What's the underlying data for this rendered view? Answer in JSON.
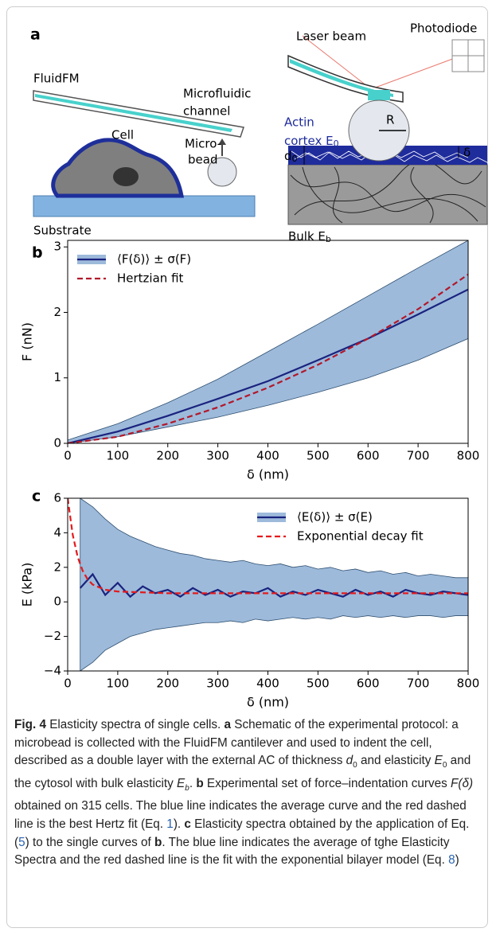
{
  "panel_a": {
    "label": "a",
    "fluidfm": "FluidFM",
    "microfluidic": "Microfluidic",
    "channel": "channel",
    "cell": "Cell",
    "micro": "Micro-",
    "bead": "bead",
    "substrate": "Substrate",
    "laser": "Laser beam",
    "photodiode": "Photodiode",
    "actin": "Actin",
    "cortex": "cortex E",
    "cortex_sub": "0",
    "r": "R",
    "d": "d",
    "d_sub": "0",
    "delta": "δ",
    "bulk": "Bulk E",
    "bulk_sub": "b"
  },
  "chart_data": [
    {
      "type": "line",
      "panel": "b",
      "xlabel": "δ (nm)",
      "ylabel": "F (nN)",
      "xlim": [
        0,
        800
      ],
      "ylim": [
        0,
        3.1
      ],
      "xticks": [
        0,
        100,
        200,
        300,
        400,
        500,
        600,
        700,
        800
      ],
      "yticks": [
        0,
        1,
        2,
        3
      ],
      "legend": "upper left",
      "series": [
        {
          "name": "⟨F(δ)⟩ ± σ(F)",
          "color": "#1a237e",
          "band_color": "#9dbadb",
          "x": [
            0,
            100,
            200,
            300,
            400,
            500,
            600,
            700,
            800
          ],
          "values": [
            0,
            0.18,
            0.42,
            0.68,
            0.95,
            1.27,
            1.6,
            1.97,
            2.35
          ],
          "lower": [
            0,
            0.1,
            0.25,
            0.4,
            0.58,
            0.78,
            1.0,
            1.27,
            1.6
          ],
          "upper": [
            0.05,
            0.3,
            0.62,
            0.98,
            1.4,
            1.82,
            2.25,
            2.68,
            3.1
          ]
        },
        {
          "name": "Hertzian fit",
          "color": "#b2182b",
          "dashed": true,
          "x": [
            0,
            100,
            200,
            300,
            400,
            500,
            600,
            700,
            800
          ],
          "values": [
            0,
            0.1,
            0.3,
            0.55,
            0.85,
            1.2,
            1.6,
            2.05,
            2.58
          ]
        }
      ]
    },
    {
      "type": "line",
      "panel": "c",
      "xlabel": "δ (nm)",
      "ylabel": "E (kPa)",
      "xlim": [
        0,
        800
      ],
      "ylim": [
        -4,
        6
      ],
      "xticks": [
        0,
        100,
        200,
        300,
        400,
        500,
        600,
        700,
        800
      ],
      "yticks": [
        {
          "value": -4,
          "label": "−4"
        },
        {
          "value": -2,
          "label": "−2"
        },
        0,
        2,
        4,
        6
      ],
      "legend": "upper right",
      "series": [
        {
          "name": "⟨E(δ)⟩ ± σ(E)",
          "color": "#1a237e",
          "band_color": "#9dbadb",
          "x": [
            25,
            50,
            75,
            100,
            125,
            150,
            175,
            200,
            225,
            250,
            275,
            300,
            325,
            350,
            375,
            400,
            425,
            450,
            475,
            500,
            525,
            550,
            575,
            600,
            625,
            650,
            675,
            700,
            725,
            750,
            775,
            800
          ],
          "values": [
            0.8,
            1.6,
            0.4,
            1.1,
            0.3,
            0.9,
            0.5,
            0.7,
            0.3,
            0.8,
            0.4,
            0.7,
            0.3,
            0.6,
            0.5,
            0.8,
            0.3,
            0.6,
            0.4,
            0.7,
            0.5,
            0.3,
            0.7,
            0.4,
            0.6,
            0.3,
            0.7,
            0.5,
            0.4,
            0.6,
            0.5,
            0.4
          ],
          "lower": [
            -4,
            -3.5,
            -2.8,
            -2.4,
            -2.0,
            -1.8,
            -1.6,
            -1.5,
            -1.4,
            -1.3,
            -1.2,
            -1.2,
            -1.1,
            -1.2,
            -1.0,
            -1.1,
            -1.0,
            -0.9,
            -1.0,
            -0.9,
            -1.0,
            -0.8,
            -0.9,
            -0.8,
            -0.9,
            -0.8,
            -0.9,
            -0.8,
            -0.8,
            -0.9,
            -0.8,
            -0.8
          ],
          "upper": [
            6,
            5.5,
            4.8,
            4.2,
            3.8,
            3.5,
            3.2,
            3.0,
            2.8,
            2.7,
            2.5,
            2.4,
            2.3,
            2.4,
            2.2,
            2.1,
            2.2,
            2.0,
            2.1,
            1.9,
            2.0,
            1.8,
            1.9,
            1.7,
            1.8,
            1.6,
            1.7,
            1.5,
            1.6,
            1.5,
            1.4,
            1.4
          ]
        },
        {
          "name": "Exponential decay fit",
          "color": "#e41a1c",
          "dashed": true,
          "x": [
            0,
            10,
            20,
            30,
            40,
            50,
            75,
            100,
            150,
            200,
            300,
            400,
            500,
            600,
            700,
            800
          ],
          "values": [
            6,
            3.9,
            2.6,
            1.8,
            1.3,
            1.0,
            0.7,
            0.6,
            0.55,
            0.5,
            0.5,
            0.5,
            0.5,
            0.5,
            0.5,
            0.5
          ]
        }
      ]
    }
  ],
  "caption": [
    "Fig. 4",
    "  Elasticity spectra of single cells. ",
    "a",
    " Schematic of the experimental protocol: a microbead is collected with the FluidFM cantilever and used to indent the cell, described as a double layer with the external AC of thickness ",
    "d",
    "0",
    " and elasticity ",
    "E",
    "0",
    " and the cytosol with bulk elasticity ",
    "E",
    "b",
    ". ",
    "b",
    " Experimental set of force–indentation curves ",
    "F(δ)",
    " obtained on 315 cells. The blue line indicates the average curve and the red dashed line is the best Hertz fit (Eq. ",
    "1",
    "). ",
    "c",
    " Elasticity spectra obtained by the application of Eq. (",
    "5",
    ") to the single curves of ",
    "b",
    ". The blue line indicates the average of tghe Elasticity Spectra and the red dashed line is the fit with the exponential bilayer model (Eq. ",
    "8",
    ")"
  ]
}
